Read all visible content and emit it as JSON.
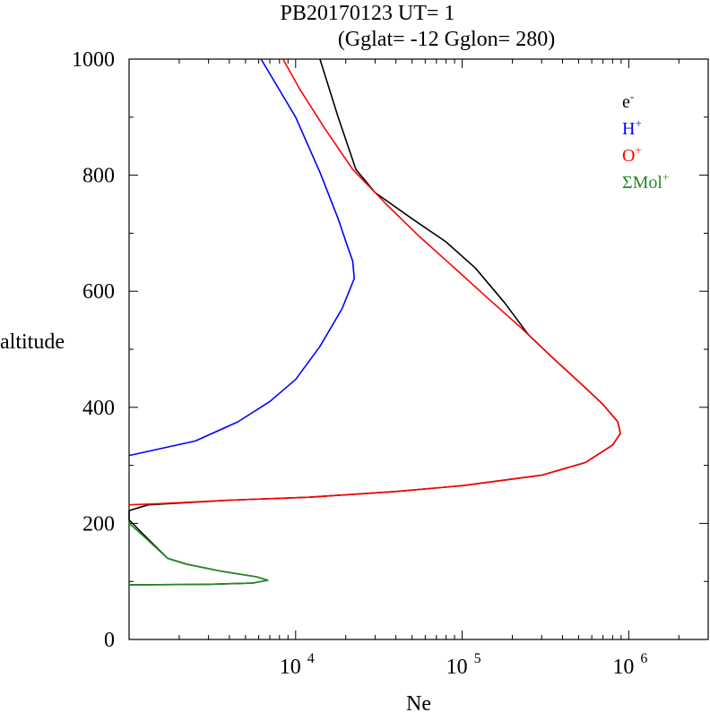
{
  "chart_data": {
    "type": "line",
    "title_line1": "PB20170123   UT=  1",
    "title_line2": "(Gglat= -12   Gglon=  280)",
    "xlabel": "Ne",
    "ylabel": "altitude",
    "x_scale": "log",
    "xlim": [
      1000,
      3000000
    ],
    "ylim": [
      0,
      1000
    ],
    "grid": false,
    "legend_position": "top-right",
    "y_ticks": [
      {
        "value": 0,
        "label": "0"
      },
      {
        "value": 200,
        "label": "200"
      },
      {
        "value": 400,
        "label": "400"
      },
      {
        "value": 600,
        "label": "600"
      },
      {
        "value": 800,
        "label": "800"
      },
      {
        "value": 1000,
        "label": "1000"
      }
    ],
    "x_ticks": [
      {
        "value": 10000,
        "base": "10",
        "exp": "4"
      },
      {
        "value": 100000,
        "base": "10",
        "exp": "5"
      },
      {
        "value": 1000000,
        "base": "10",
        "exp": "6"
      }
    ],
    "series": [
      {
        "base": "e",
        "sup": "-",
        "color": "#000000",
        "points": [
          [
            1000,
            94
          ],
          [
            3000,
            95
          ],
          [
            5500,
            97
          ],
          [
            6800,
            102
          ],
          [
            5800,
            108
          ],
          [
            3500,
            118
          ],
          [
            2200,
            130
          ],
          [
            1700,
            140
          ],
          [
            1200,
            183
          ],
          [
            1000,
            206
          ],
          [
            1000,
            222
          ],
          [
            1300,
            232
          ],
          [
            4000,
            240
          ],
          [
            12000,
            245
          ],
          [
            40000,
            255
          ],
          [
            100000,
            265
          ],
          [
            300000,
            283
          ],
          [
            550000,
            305
          ],
          [
            800000,
            335
          ],
          [
            890000,
            355
          ],
          [
            860000,
            375
          ],
          [
            700000,
            405
          ],
          [
            520000,
            440
          ],
          [
            350000,
            485
          ],
          [
            250000,
            525
          ],
          [
            180000,
            580
          ],
          [
            120000,
            640
          ],
          [
            80000,
            685
          ],
          [
            50000,
            725
          ],
          [
            30000,
            770
          ],
          [
            23000,
            810
          ],
          [
            18000,
            900
          ],
          [
            14000,
            1000
          ]
        ]
      },
      {
        "base": "H",
        "sup": "+",
        "color": "#0000ff",
        "points": [
          [
            1000,
            317
          ],
          [
            2500,
            342
          ],
          [
            4500,
            375
          ],
          [
            7000,
            410
          ],
          [
            10000,
            448
          ],
          [
            14000,
            505
          ],
          [
            19000,
            570
          ],
          [
            22500,
            622
          ],
          [
            22000,
            652
          ],
          [
            20500,
            677
          ],
          [
            18000,
            725
          ],
          [
            14000,
            805
          ],
          [
            10000,
            900
          ],
          [
            6200,
            1000
          ]
        ]
      },
      {
        "base": "O",
        "sup": "+",
        "color": "#ff0000",
        "points": [
          [
            1000,
            232
          ],
          [
            1500,
            234
          ],
          [
            4000,
            240
          ],
          [
            12000,
            245
          ],
          [
            40000,
            255
          ],
          [
            100000,
            265
          ],
          [
            300000,
            283
          ],
          [
            550000,
            305
          ],
          [
            800000,
            335
          ],
          [
            890000,
            355
          ],
          [
            860000,
            375
          ],
          [
            700000,
            405
          ],
          [
            520000,
            440
          ],
          [
            350000,
            485
          ],
          [
            220000,
            540
          ],
          [
            140000,
            590
          ],
          [
            90000,
            640
          ],
          [
            55000,
            695
          ],
          [
            35000,
            750
          ],
          [
            22000,
            810
          ],
          [
            15000,
            880
          ],
          [
            10500,
            950
          ],
          [
            8400,
            1000
          ]
        ]
      },
      {
        "base": "ΣMol",
        "sup": "+",
        "color": "#228b22",
        "points": [
          [
            1000,
            94
          ],
          [
            3000,
            95
          ],
          [
            5500,
            97
          ],
          [
            6800,
            102
          ],
          [
            5800,
            108
          ],
          [
            3500,
            118
          ],
          [
            2200,
            130
          ],
          [
            1700,
            140
          ],
          [
            1200,
            180
          ],
          [
            1000,
            200
          ]
        ]
      }
    ]
  }
}
